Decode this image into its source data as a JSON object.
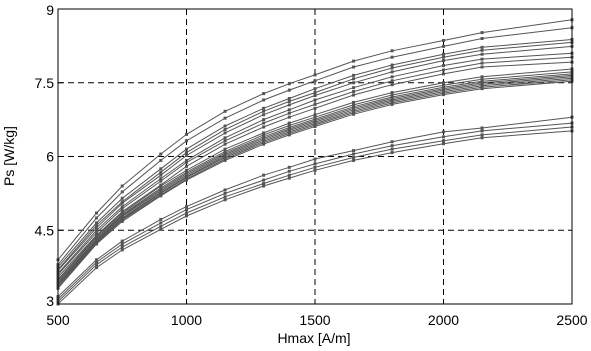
{
  "chart_data": {
    "type": "line",
    "title": "",
    "xlabel": "Hmax [A/m]",
    "ylabel": "Ps [W/kg]",
    "xlim": [
      500,
      2500
    ],
    "ylim": [
      3,
      9
    ],
    "xticks": [
      500,
      1000,
      1500,
      2000,
      2500
    ],
    "yticks": [
      3,
      4.5,
      6,
      7.5,
      9
    ],
    "xtick_labels": [
      "500",
      "1000",
      "1500",
      "2000",
      "2500"
    ],
    "ytick_labels": [
      "3",
      "4.5",
      "6",
      "7.5",
      "9"
    ],
    "grid": true,
    "line_color": "#555555",
    "x": [
      500,
      650,
      750,
      900,
      1000,
      1150,
      1300,
      1400,
      1500,
      1650,
      1800,
      2000,
      2150,
      2500
    ],
    "series": [
      {
        "values": [
          3.9,
          4.85,
          5.4,
          6.05,
          6.45,
          6.92,
          7.28,
          7.48,
          7.66,
          7.94,
          8.15,
          8.36,
          8.52,
          8.78
        ]
      },
      {
        "values": [
          3.8,
          4.75,
          5.28,
          5.92,
          6.32,
          6.78,
          7.15,
          7.35,
          7.54,
          7.82,
          8.02,
          8.24,
          8.4,
          8.62
        ]
      },
      {
        "values": [
          3.75,
          4.65,
          5.15,
          5.75,
          6.15,
          6.62,
          6.98,
          7.18,
          7.38,
          7.65,
          7.86,
          8.08,
          8.22,
          8.38
        ]
      },
      {
        "values": [
          3.7,
          4.6,
          5.08,
          5.68,
          6.08,
          6.55,
          6.92,
          7.12,
          7.3,
          7.58,
          7.8,
          8.02,
          8.16,
          8.32
        ]
      },
      {
        "values": [
          3.68,
          4.55,
          5.05,
          5.62,
          6.02,
          6.48,
          6.85,
          7.05,
          7.24,
          7.5,
          7.72,
          7.95,
          8.08,
          8.24
        ]
      },
      {
        "values": [
          3.62,
          4.5,
          4.98,
          5.55,
          5.92,
          6.38,
          6.75,
          6.95,
          7.15,
          7.4,
          7.62,
          7.85,
          7.98,
          8.1
        ]
      },
      {
        "values": [
          3.6,
          4.45,
          4.94,
          5.5,
          5.88,
          6.32,
          6.68,
          6.88,
          7.06,
          7.32,
          7.54,
          7.76,
          7.9,
          8.02
        ]
      },
      {
        "values": [
          3.55,
          4.4,
          4.88,
          5.42,
          5.8,
          6.25,
          6.6,
          6.8,
          6.98,
          7.25,
          7.46,
          7.68,
          7.82,
          7.92
        ]
      },
      {
        "values": [
          3.5,
          4.38,
          4.85,
          5.4,
          5.72,
          6.15,
          6.48,
          6.68,
          6.85,
          7.1,
          7.3,
          7.5,
          7.62,
          7.78
        ]
      },
      {
        "values": [
          3.48,
          4.35,
          4.82,
          5.36,
          5.68,
          6.1,
          6.44,
          6.63,
          6.8,
          7.05,
          7.25,
          7.45,
          7.57,
          7.72
        ]
      },
      {
        "values": [
          3.45,
          4.32,
          4.8,
          5.33,
          5.65,
          6.07,
          6.4,
          6.59,
          6.76,
          7.01,
          7.21,
          7.41,
          7.53,
          7.68
        ]
      },
      {
        "values": [
          3.42,
          4.3,
          4.78,
          5.3,
          5.62,
          6.04,
          6.37,
          6.56,
          6.73,
          6.98,
          7.18,
          7.38,
          7.5,
          7.65
        ]
      },
      {
        "values": [
          3.4,
          4.28,
          4.75,
          5.27,
          5.59,
          6.01,
          6.34,
          6.53,
          6.7,
          6.95,
          7.15,
          7.35,
          7.47,
          7.62
        ]
      },
      {
        "values": [
          3.38,
          4.26,
          4.73,
          5.25,
          5.57,
          5.98,
          6.31,
          6.5,
          6.67,
          6.92,
          7.12,
          7.32,
          7.44,
          7.59
        ]
      },
      {
        "values": [
          3.35,
          4.24,
          4.71,
          5.22,
          5.54,
          5.95,
          6.28,
          6.47,
          6.64,
          6.89,
          7.09,
          7.29,
          7.41,
          7.56
        ]
      },
      {
        "values": [
          3.32,
          4.22,
          4.68,
          5.2,
          5.52,
          5.92,
          6.25,
          6.44,
          6.61,
          6.86,
          7.06,
          7.26,
          7.38,
          7.53
        ]
      },
      {
        "values": [
          3.15,
          3.9,
          4.28,
          4.72,
          4.98,
          5.32,
          5.62,
          5.78,
          5.95,
          6.12,
          6.3,
          6.5,
          6.58,
          6.8
        ]
      },
      {
        "values": [
          3.1,
          3.85,
          4.22,
          4.65,
          4.92,
          5.25,
          5.52,
          5.7,
          5.85,
          6.05,
          6.22,
          6.4,
          6.52,
          6.68
        ]
      },
      {
        "values": [
          3.05,
          3.8,
          4.16,
          4.58,
          4.85,
          5.18,
          5.45,
          5.62,
          5.78,
          5.98,
          6.15,
          6.32,
          6.44,
          6.6
        ]
      },
      {
        "values": [
          3.0,
          3.74,
          4.1,
          4.52,
          4.79,
          5.12,
          5.4,
          5.56,
          5.72,
          5.92,
          6.08,
          6.26,
          6.38,
          6.52
        ]
      }
    ]
  }
}
